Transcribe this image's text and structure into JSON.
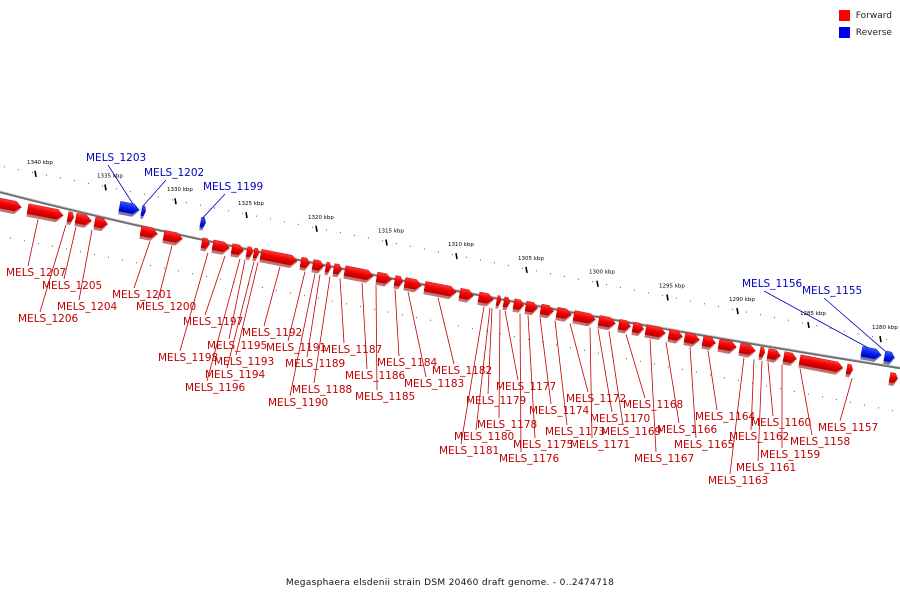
{
  "title": "Megasphaera elsdenii strain DSM 20460 draft genome. - 0..2474718",
  "legend": {
    "forward_label": "Forward",
    "reverse_label": "Reverse",
    "forward_color": "#ff0000",
    "reverse_color": "#0000ee"
  },
  "colors": {
    "forward": "#ee0000",
    "reverse": "#0000ee",
    "backbone": "#808080"
  },
  "scale_labels": [
    "1340 kbp",
    "1335 kbp",
    "1330 kbp",
    "1325 kbp",
    "1320 kbp",
    "1315 kbp",
    "1310 kbp",
    "1305 kbp",
    "1300 kbp",
    "1295 kbp",
    "1290 kbp",
    "1285 kbp",
    "1280 kbp"
  ],
  "genes": [
    {
      "label": "MELS_1207",
      "strand": "forward"
    },
    {
      "label": "MELS_1206",
      "strand": "forward"
    },
    {
      "label": "MELS_1205",
      "strand": "forward"
    },
    {
      "label": "MELS_1204",
      "strand": "forward"
    },
    {
      "label": "MELS_1203",
      "strand": "reverse"
    },
    {
      "label": "MELS_1202",
      "strand": "reverse"
    },
    {
      "label": "MELS_1201",
      "strand": "forward"
    },
    {
      "label": "MELS_1200",
      "strand": "forward"
    },
    {
      "label": "MELS_1199",
      "strand": "reverse"
    },
    {
      "label": "MELS_1198",
      "strand": "forward"
    },
    {
      "label": "MELS_1197",
      "strand": "forward"
    },
    {
      "label": "MELS_1196",
      "strand": "forward"
    },
    {
      "label": "MELS_1195",
      "strand": "forward"
    },
    {
      "label": "MELS_1194",
      "strand": "forward"
    },
    {
      "label": "MELS_1193",
      "strand": "forward"
    },
    {
      "label": "MELS_1192",
      "strand": "forward"
    },
    {
      "label": "MELS_1191",
      "strand": "forward"
    },
    {
      "label": "MELS_1190",
      "strand": "forward"
    },
    {
      "label": "MELS_1189",
      "strand": "forward"
    },
    {
      "label": "MELS_1188",
      "strand": "forward"
    },
    {
      "label": "MELS_1187",
      "strand": "forward"
    },
    {
      "label": "MELS_1186",
      "strand": "forward"
    },
    {
      "label": "MELS_1185",
      "strand": "forward"
    },
    {
      "label": "MELS_1184",
      "strand": "forward"
    },
    {
      "label": "MELS_1183",
      "strand": "forward"
    },
    {
      "label": "MELS_1182",
      "strand": "forward"
    },
    {
      "label": "MELS_1181",
      "strand": "forward"
    },
    {
      "label": "MELS_1180",
      "strand": "forward"
    },
    {
      "label": "MELS_1179",
      "strand": "forward"
    },
    {
      "label": "MELS_1178",
      "strand": "forward"
    },
    {
      "label": "MELS_1177",
      "strand": "forward"
    },
    {
      "label": "MELS_1176",
      "strand": "forward"
    },
    {
      "label": "MELS_1175",
      "strand": "forward"
    },
    {
      "label": "MELS_1174",
      "strand": "forward"
    },
    {
      "label": "MELS_1173",
      "strand": "forward"
    },
    {
      "label": "MELS_1172",
      "strand": "forward"
    },
    {
      "label": "MELS_1171",
      "strand": "forward"
    },
    {
      "label": "MELS_1170",
      "strand": "forward"
    },
    {
      "label": "MELS_1169",
      "strand": "forward"
    },
    {
      "label": "MELS_1168",
      "strand": "forward"
    },
    {
      "label": "MELS_1167",
      "strand": "forward"
    },
    {
      "label": "MELS_1166",
      "strand": "forward"
    },
    {
      "label": "MELS_1165",
      "strand": "forward"
    },
    {
      "label": "MELS_1164",
      "strand": "forward"
    },
    {
      "label": "MELS_1163",
      "strand": "forward"
    },
    {
      "label": "MELS_1162",
      "strand": "forward"
    },
    {
      "label": "MELS_1161",
      "strand": "forward"
    },
    {
      "label": "MELS_1160",
      "strand": "forward"
    },
    {
      "label": "MELS_1159",
      "strand": "forward"
    },
    {
      "label": "MELS_1158",
      "strand": "forward"
    },
    {
      "label": "MELS_1157",
      "strand": "forward"
    },
    {
      "label": "MELS_1156",
      "strand": "reverse"
    },
    {
      "label": "MELS_1155",
      "strand": "reverse"
    }
  ]
}
